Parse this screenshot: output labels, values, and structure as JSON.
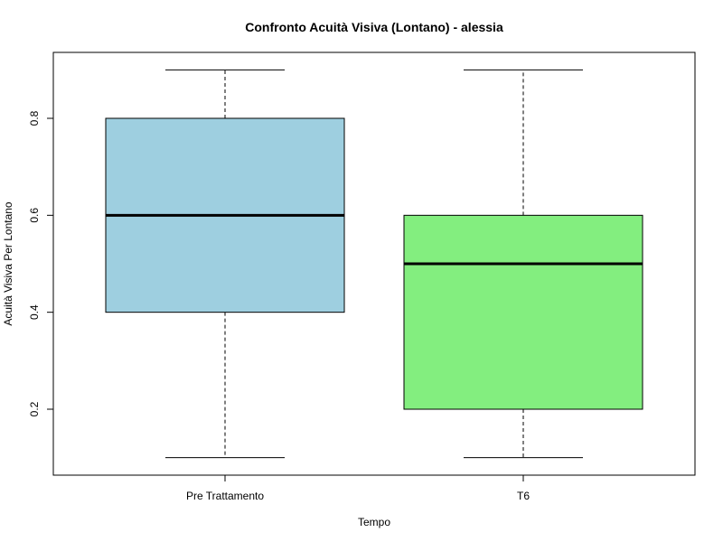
{
  "chart_data": {
    "type": "box",
    "title": "Confronto Acuità Visiva (Lontano) - alessia",
    "xlabel": "Tempo",
    "ylabel": "Acuità Visiva Per Lontano",
    "categories": [
      "Pre Trattamento",
      "T6"
    ],
    "series": [
      {
        "category": "Pre Trattamento",
        "min": 0.1,
        "q1": 0.4,
        "median": 0.6,
        "q3": 0.8,
        "max": 0.9,
        "color": "#9ecfe0"
      },
      {
        "category": "T6",
        "min": 0.1,
        "q1": 0.2,
        "median": 0.5,
        "q3": 0.6,
        "max": 0.9,
        "color": "#83ee7f"
      }
    ],
    "yticks": [
      "0.2",
      "0.4",
      "0.6",
      "0.8"
    ],
    "ylim": [
      0.064,
      0.936
    ],
    "grid": false,
    "legend": "none"
  }
}
